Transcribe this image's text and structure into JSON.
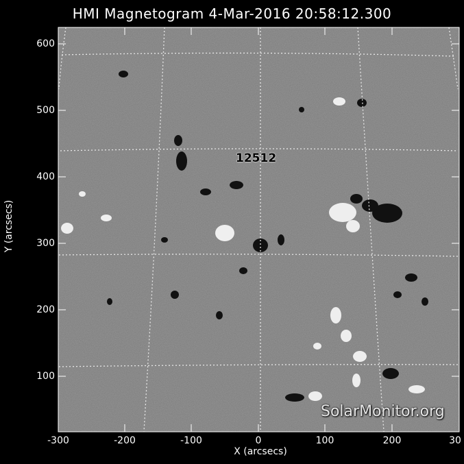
{
  "title": "HMI Magnetogram   4-Mar-2016 20:58:12.300",
  "axis": {
    "xlabel": "X (arcsecs)",
    "ylabel": "Y (arcsecs)",
    "xticks": [
      "-300",
      "-200",
      "-100",
      "0",
      "100",
      "200",
      "30"
    ],
    "yticks": [
      "600",
      "500",
      "400",
      "300",
      "200",
      "100"
    ]
  },
  "region_label": "12512",
  "watermark": "SolarMonitor.org",
  "colors": {
    "background": "#000000",
    "field_gray": "#7c7c7c",
    "negative": "#0a0a0a",
    "positive": "#f2f2f2"
  }
}
